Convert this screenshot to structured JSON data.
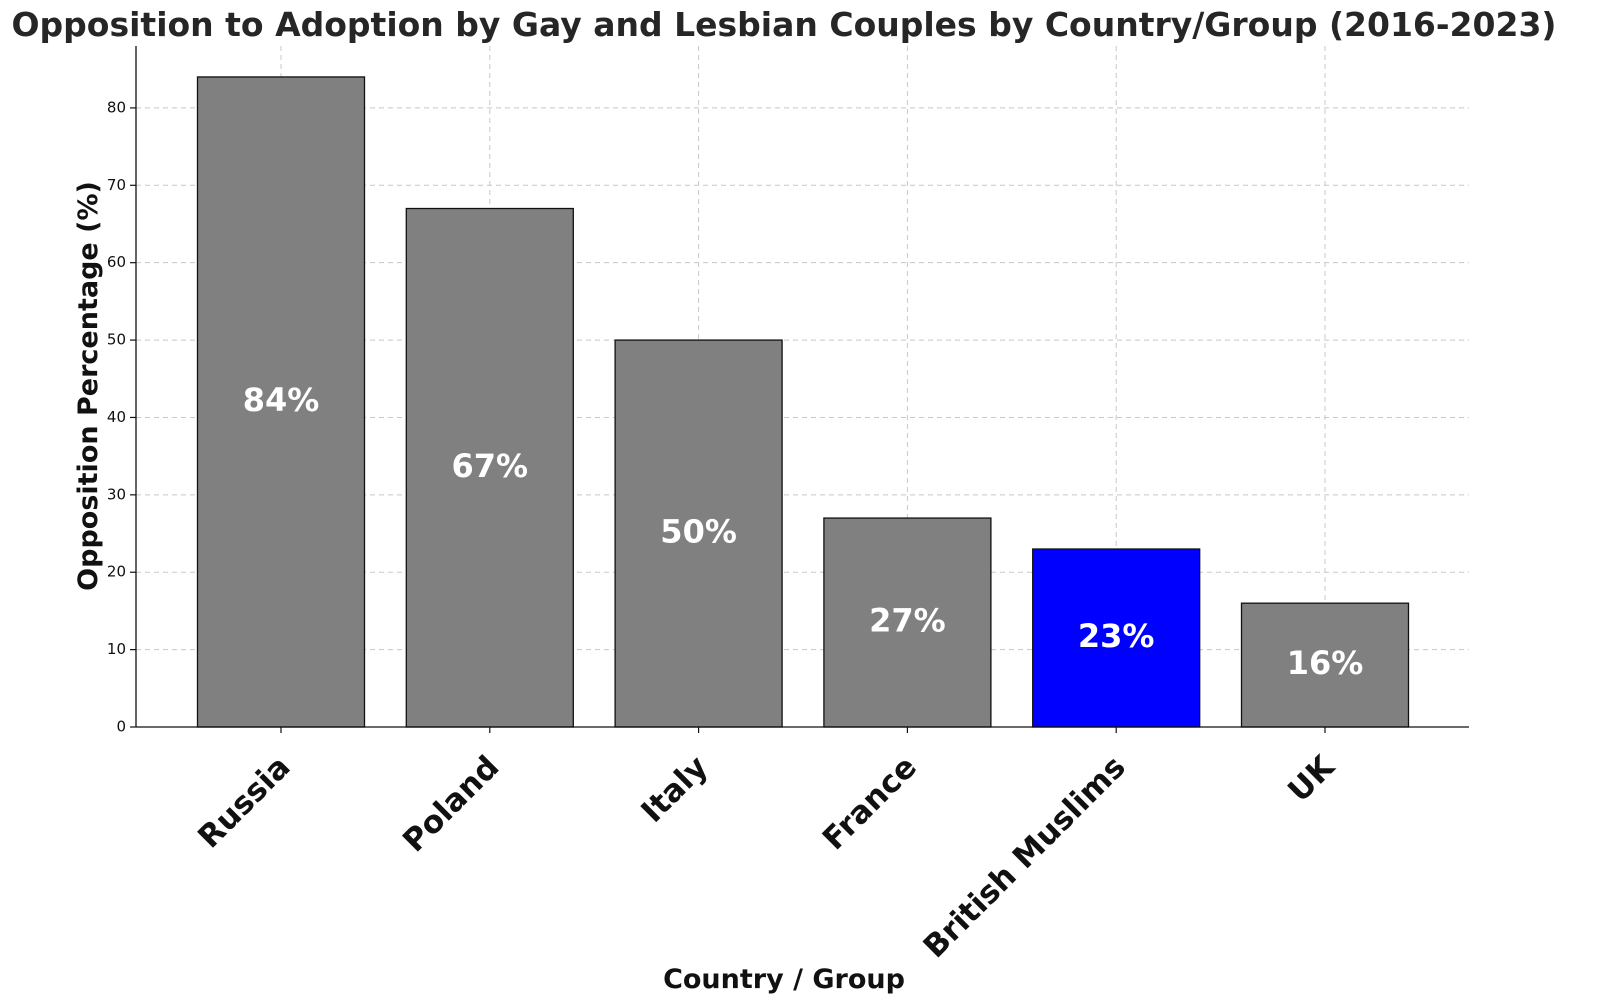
{
  "chart_data": {
    "type": "bar",
    "title": "Opposition to Adoption by Gay and Lesbian Couples by Country/Group (2016-2023)",
    "xlabel": "Country / Group",
    "ylabel": "Opposition Percentage (%)",
    "categories": [
      "Russia",
      "Poland",
      "Italy",
      "France",
      "British Muslims",
      "UK"
    ],
    "values": [
      84,
      67,
      50,
      27,
      23,
      16
    ],
    "value_labels": [
      "84%",
      "67%",
      "50%",
      "27%",
      "23%",
      "16%"
    ],
    "colors": [
      "#808080",
      "#808080",
      "#808080",
      "#808080",
      "#0000ff",
      "#808080"
    ],
    "ylim": [
      0,
      88
    ],
    "yticks": [
      0,
      10,
      20,
      30,
      40,
      50,
      60,
      70,
      80
    ],
    "grid": true,
    "edge_color": "#111111"
  }
}
